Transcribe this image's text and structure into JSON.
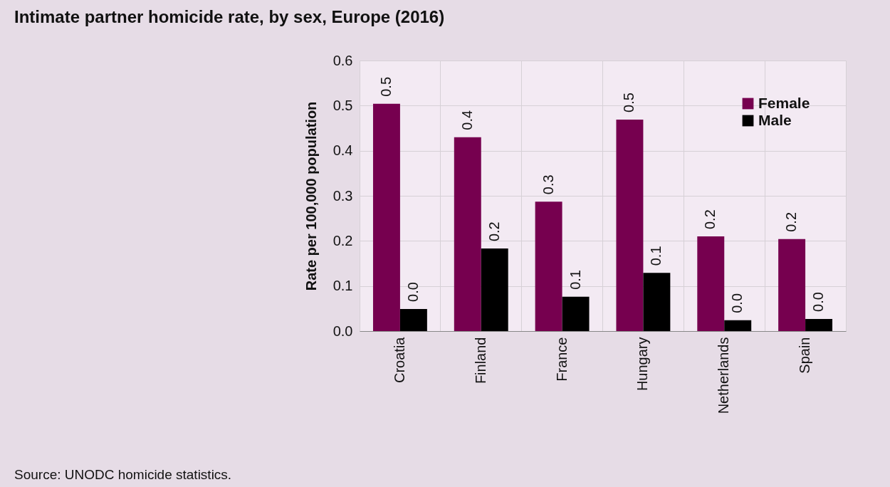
{
  "chart_data": {
    "type": "bar",
    "title": "Intimate partner homicide rate, by sex, Europe (2016)",
    "ylabel": "Rate per 100,000 population",
    "categories": [
      "Croatia",
      "Finland",
      "France",
      "Hungary",
      "Netherlands",
      "Spain"
    ],
    "series": [
      {
        "name": "Female",
        "color": "#76004f",
        "values": [
          0.504,
          0.43,
          0.287,
          0.469,
          0.21,
          0.204
        ],
        "value_labels": [
          "0.5",
          "0.4",
          "0.3",
          "0.5",
          "0.2",
          "0.2"
        ]
      },
      {
        "name": "Male",
        "color": "#000000",
        "values": [
          0.049,
          0.183,
          0.076,
          0.129,
          0.024,
          0.027
        ],
        "value_labels": [
          "0.0",
          "0.2",
          "0.1",
          "0.1",
          "0.0",
          "0.0"
        ]
      }
    ],
    "ylim": [
      0,
      0.6
    ],
    "yticks": [
      {
        "value": 0,
        "label": "0.0"
      },
      {
        "value": 0.1,
        "label": "0.1"
      },
      {
        "value": 0.2,
        "label": "0.2"
      },
      {
        "value": 0.3,
        "label": "0.3"
      },
      {
        "value": 0.4,
        "label": "0.4"
      },
      {
        "value": 0.5,
        "label": "0.5"
      },
      {
        "value": 0.6,
        "label": "0.6"
      }
    ],
    "grid": true,
    "legend": "top right",
    "annotations": [
      "Source: UNODC homicide statistics."
    ]
  }
}
